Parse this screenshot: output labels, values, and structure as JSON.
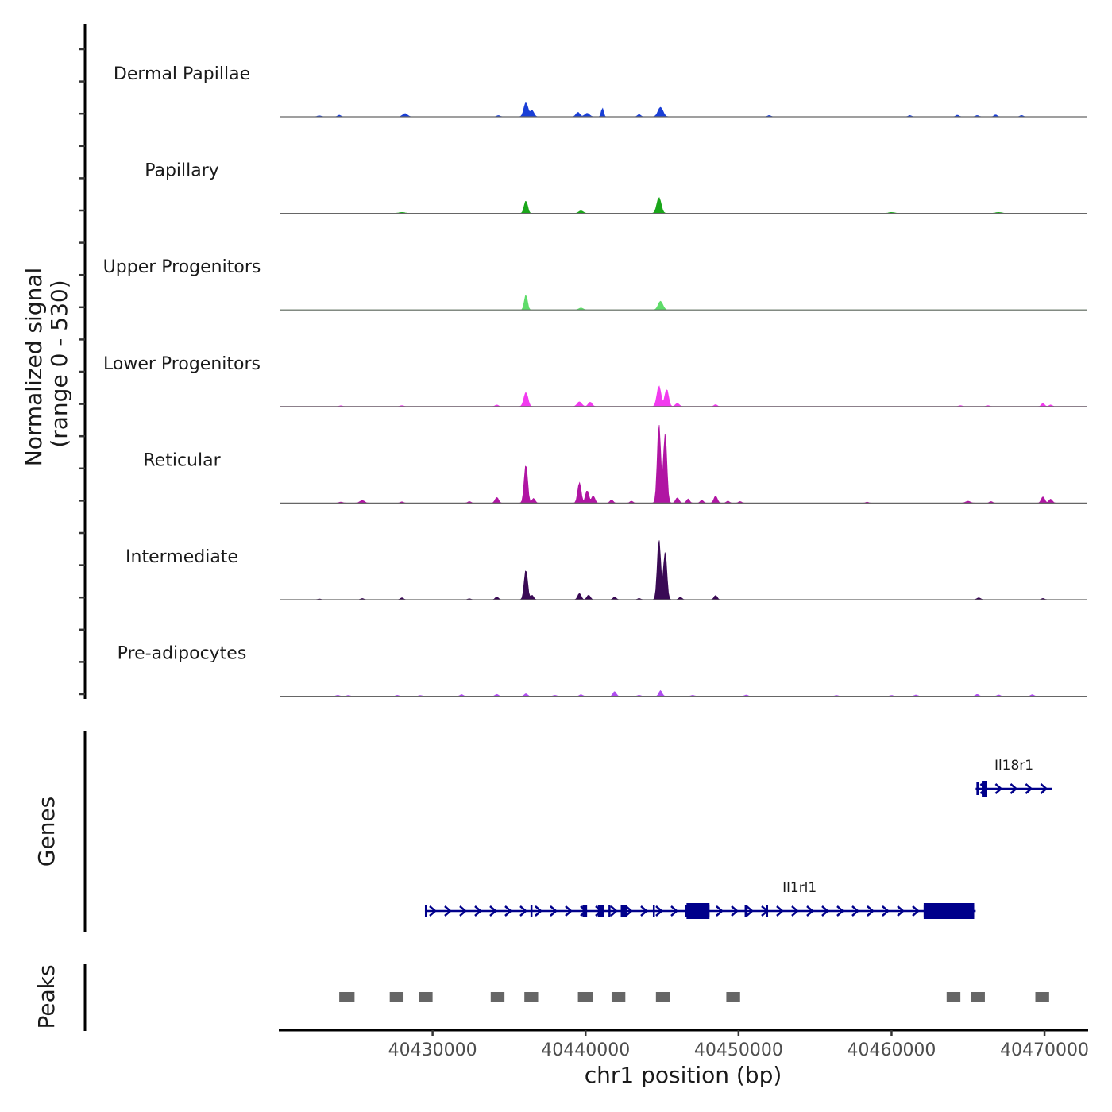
{
  "chart_data": {
    "type": "area",
    "title": "",
    "ylabel": "Normalized signal\n(range 0 - 530)",
    "ylabel_line1": "Normalized signal",
    "ylabel_line2": "(range 0 - 530)",
    "xlabel": "chr1 position (bp)",
    "xlim": [
      40420000,
      40472800
    ],
    "ylim": [
      0,
      530
    ],
    "x_ticks": [
      40430000,
      40440000,
      40450000,
      40460000,
      40470000
    ],
    "x_tick_labels": [
      "40430000",
      "40440000",
      "40450000",
      "40460000",
      "40470000"
    ],
    "tracks": [
      {
        "name": "Dermal Papillae",
        "color": "#1a3fd6",
        "peaks": [
          [
            40422600,
            6,
            120
          ],
          [
            40423900,
            10,
            100
          ],
          [
            40428200,
            20,
            150
          ],
          [
            40434300,
            8,
            100
          ],
          [
            40436100,
            90,
            130
          ],
          [
            40436500,
            40,
            120
          ],
          [
            40439500,
            28,
            120
          ],
          [
            40440100,
            22,
            150
          ],
          [
            40441100,
            55,
            70
          ],
          [
            40443500,
            14,
            100
          ],
          [
            40444900,
            60,
            160
          ],
          [
            40452000,
            8,
            100
          ],
          [
            40461200,
            8,
            100
          ],
          [
            40464300,
            10,
            100
          ],
          [
            40465600,
            8,
            100
          ],
          [
            40466800,
            12,
            100
          ],
          [
            40468500,
            8,
            100
          ]
        ]
      },
      {
        "name": "Papillary",
        "color": "#1aa61a",
        "peaks": [
          [
            40428000,
            6,
            200
          ],
          [
            40436100,
            80,
            110
          ],
          [
            40439700,
            16,
            140
          ],
          [
            40444800,
            100,
            140
          ],
          [
            40460000,
            6,
            200
          ],
          [
            40467000,
            6,
            200
          ]
        ]
      },
      {
        "name": "Upper Progenitors",
        "color": "#5fdc6a",
        "peaks": [
          [
            40436100,
            95,
            100
          ],
          [
            40439700,
            12,
            140
          ],
          [
            40444900,
            55,
            150
          ]
        ]
      },
      {
        "name": "Lower Progenitors",
        "color": "#f23bef",
        "peaks": [
          [
            40424000,
            5,
            100
          ],
          [
            40428000,
            6,
            100
          ],
          [
            40434200,
            10,
            100
          ],
          [
            40436100,
            90,
            130
          ],
          [
            40439600,
            30,
            140
          ],
          [
            40440300,
            28,
            120
          ],
          [
            40444800,
            130,
            130
          ],
          [
            40445300,
            110,
            120
          ],
          [
            40446000,
            20,
            120
          ],
          [
            40448500,
            12,
            100
          ],
          [
            40464500,
            6,
            100
          ],
          [
            40466300,
            6,
            100
          ],
          [
            40469900,
            20,
            100
          ],
          [
            40470400,
            10,
            100
          ]
        ]
      },
      {
        "name": "Reticular",
        "color": "#b015a3",
        "peaks": [
          [
            40424000,
            6,
            120
          ],
          [
            40425400,
            16,
            150
          ],
          [
            40428000,
            8,
            100
          ],
          [
            40432400,
            10,
            100
          ],
          [
            40434200,
            36,
            110
          ],
          [
            40436100,
            245,
            110
          ],
          [
            40436600,
            30,
            100
          ],
          [
            40439600,
            130,
            110
          ],
          [
            40440100,
            80,
            110
          ],
          [
            40440500,
            45,
            110
          ],
          [
            40441700,
            20,
            100
          ],
          [
            40443000,
            12,
            100
          ],
          [
            40444800,
            500,
            110
          ],
          [
            40445200,
            440,
            110
          ],
          [
            40446000,
            34,
            110
          ],
          [
            40446700,
            26,
            100
          ],
          [
            40447600,
            18,
            100
          ],
          [
            40448500,
            45,
            110
          ],
          [
            40449300,
            12,
            100
          ],
          [
            40450100,
            10,
            100
          ],
          [
            40458400,
            6,
            100
          ],
          [
            40465000,
            12,
            150
          ],
          [
            40466500,
            10,
            100
          ],
          [
            40469900,
            40,
            110
          ],
          [
            40470400,
            25,
            110
          ]
        ]
      },
      {
        "name": "Intermediate",
        "color": "#3a0a55",
        "peaks": [
          [
            40422600,
            5,
            100
          ],
          [
            40425400,
            8,
            100
          ],
          [
            40428000,
            12,
            100
          ],
          [
            40432400,
            6,
            100
          ],
          [
            40434200,
            18,
            100
          ],
          [
            40436100,
            190,
            110
          ],
          [
            40436500,
            28,
            100
          ],
          [
            40439600,
            40,
            110
          ],
          [
            40440200,
            30,
            110
          ],
          [
            40441900,
            18,
            100
          ],
          [
            40443500,
            8,
            100
          ],
          [
            40444800,
            380,
            110
          ],
          [
            40445200,
            300,
            110
          ],
          [
            40446200,
            16,
            100
          ],
          [
            40448500,
            28,
            100
          ],
          [
            40465700,
            12,
            120
          ],
          [
            40469900,
            8,
            100
          ]
        ]
      },
      {
        "name": "Pre-adipocytes",
        "color": "#b04ef0",
        "peaks": [
          [
            40423800,
            6,
            100
          ],
          [
            40424500,
            5,
            100
          ],
          [
            40427700,
            6,
            100
          ],
          [
            40429200,
            5,
            100
          ],
          [
            40431900,
            10,
            100
          ],
          [
            40434200,
            12,
            100
          ],
          [
            40436100,
            16,
            100
          ],
          [
            40438000,
            6,
            100
          ],
          [
            40439700,
            10,
            100
          ],
          [
            40441900,
            30,
            100
          ],
          [
            40443500,
            6,
            100
          ],
          [
            40444900,
            36,
            100
          ],
          [
            40447000,
            6,
            100
          ],
          [
            40450500,
            8,
            100
          ],
          [
            40456400,
            5,
            100
          ],
          [
            40460000,
            5,
            100
          ],
          [
            40461600,
            8,
            100
          ],
          [
            40465600,
            12,
            100
          ],
          [
            40467000,
            8,
            100
          ],
          [
            40469200,
            10,
            100
          ]
        ]
      }
    ],
    "genes_label": "Genes",
    "genes": [
      {
        "name": "Il18r1",
        "strand": "+",
        "start": 40465500,
        "end": 40470500,
        "exons": [
          [
            40465550,
            40465700
          ],
          [
            40465900,
            40466250
          ]
        ],
        "cds": [
          [
            40465900,
            40466250
          ]
        ]
      },
      {
        "name": "Il1rl1",
        "strand": "+",
        "start": 40429500,
        "end": 40465500,
        "exons": [
          [
            40429500,
            40429600
          ],
          [
            40436400,
            40436450
          ],
          [
            40439800,
            40440100
          ],
          [
            40440800,
            40441200
          ],
          [
            40441500,
            40441600
          ],
          [
            40442300,
            40442700
          ],
          [
            40444400,
            40444450
          ],
          [
            40446500,
            40448100
          ],
          [
            40450400,
            40450500
          ],
          [
            40451800,
            40451900
          ],
          [
            40462100,
            40465400
          ]
        ],
        "cds": [
          [
            40446600,
            40448100
          ],
          [
            40462100,
            40465400
          ]
        ]
      }
    ],
    "peaks_label": "Peaks",
    "peak_regions": [
      [
        40423900,
        40424900
      ],
      [
        40427200,
        40428100
      ],
      [
        40429100,
        40430000
      ],
      [
        40433800,
        40434700
      ],
      [
        40436000,
        40436900
      ],
      [
        40439500,
        40440500
      ],
      [
        40441700,
        40442600
      ],
      [
        40444600,
        40445500
      ],
      [
        40449200,
        40450100
      ],
      [
        40463600,
        40464500
      ],
      [
        40465200,
        40466100
      ],
      [
        40469400,
        40470300
      ]
    ],
    "colors": {
      "axis": "#000000",
      "baseline": "#666666",
      "gene": "#00008b",
      "peak": "#666666",
      "tick_label": "#4d4d4d"
    }
  }
}
